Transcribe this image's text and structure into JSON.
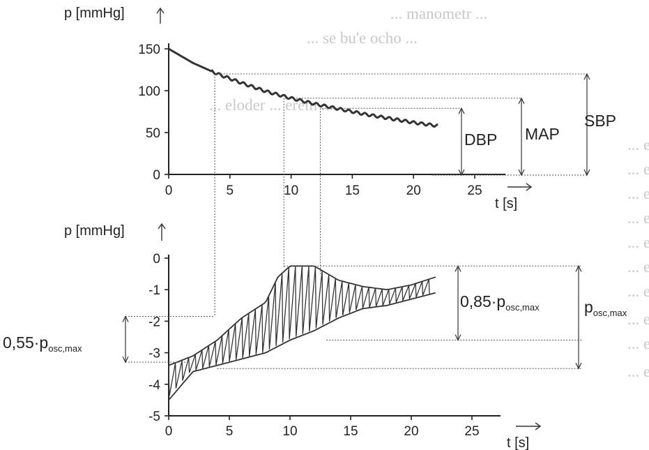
{
  "background_text": [
    "... manometr ...",
    "... se bu'e ocho ...",
    "... eloder ... erem ...",
    "... e ...",
    "... e ...",
    "... e ...",
    "... e ...",
    "... e ...",
    "... e ...",
    "... e ...",
    "... e ...",
    "... e ...",
    "... e ..."
  ],
  "chart_data": [
    {
      "type": "line",
      "ylabel": "p [mmHg]",
      "xlabel": "t [s]",
      "xlim": [
        0,
        25
      ],
      "ylim": [
        0,
        150
      ],
      "x_ticks": [
        "0",
        "5",
        "10",
        "15",
        "20",
        "25"
      ],
      "y_ticks": [
        "150",
        "100",
        "50",
        "0"
      ],
      "series": [
        {
          "x": [
            0,
            2,
            4,
            6,
            8,
            10,
            12,
            14,
            16,
            18,
            20,
            22
          ],
          "y": [
            150,
            133,
            120,
            109,
            99,
            91,
            84,
            78,
            72,
            67,
            62,
            58
          ]
        }
      ],
      "markers": {
        "SBP": 120,
        "MAP": 91,
        "DBP": 79
      },
      "marker_times": {
        "SBP": 3.8,
        "MAP": 9.5,
        "DBP": 12.5
      },
      "annotations": [
        "DBP",
        "MAP",
        "SBP"
      ]
    },
    {
      "type": "line",
      "ylabel": "p [mmHg]",
      "xlabel": "t [s]",
      "xlim": [
        0,
        25
      ],
      "ylim": [
        -5,
        0
      ],
      "x_ticks": [
        "0",
        "5",
        "10",
        "15",
        "20",
        "25"
      ],
      "y_ticks": [
        "0",
        "-1",
        "-2",
        "-3",
        "-4",
        "-5"
      ],
      "envelope_upper": {
        "x": [
          0,
          2,
          4,
          6,
          8,
          9,
          10,
          12,
          14,
          16,
          18,
          20,
          22
        ],
        "y": [
          -3.4,
          -3.1,
          -2.6,
          -1.9,
          -1.4,
          -0.6,
          -0.25,
          -0.25,
          -0.7,
          -0.9,
          -1.0,
          -0.85,
          -0.6
        ]
      },
      "envelope_lower": {
        "x": [
          0,
          2,
          4,
          6,
          8,
          10,
          12,
          14,
          16,
          18,
          20,
          22
        ],
        "y": [
          -4.5,
          -3.6,
          -3.4,
          -3.2,
          -3.0,
          -2.6,
          -2.3,
          -1.9,
          -1.6,
          -1.5,
          -1.3,
          -1.1
        ]
      },
      "annotations": {
        "left": {
          "prefix": "0,55·p",
          "subscript": "osc,max"
        },
        "middle": {
          "prefix": "0,85·p",
          "subscript": "osc,max"
        },
        "right": {
          "prefix": "p",
          "subscript": "osc,max"
        }
      }
    }
  ],
  "axis_labels": {
    "p1": "p [mmHg]",
    "t1": "t [s]",
    "p2": "p [mmHg]",
    "t2": "t [s]",
    "dbp": "DBP",
    "map": "MAP",
    "sbp": "SBP"
  }
}
